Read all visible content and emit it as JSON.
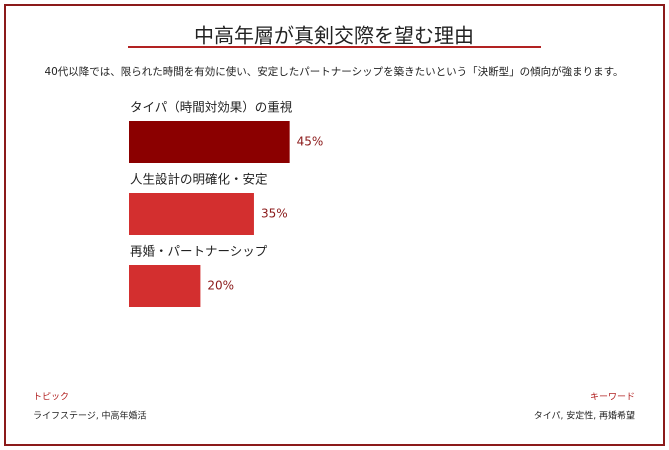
{
  "chart_data": {
    "type": "bar",
    "orientation": "horizontal",
    "title": "中高年層が真剣交際を望む理由",
    "subtitle": "40代以降では、限られた時間を有効に使い、安定したパートナーシップを築きたいという「決断型」の傾向が強まります。",
    "categories": [
      "タイパ（時間対効果）の重視",
      "人生設計の明確化・安定",
      "再婚・パートナーシップ"
    ],
    "values": [
      45,
      35,
      20
    ],
    "value_labels": [
      "45%",
      "35%",
      "20%"
    ],
    "colors": [
      "#8b0000",
      "#d32f2f",
      "#d32f2f"
    ]
  },
  "footer": {
    "topic_label": "トピック",
    "topic": "ライフステージ, 中高年婚活",
    "keyword_label": "キーワード",
    "keywords": "タイパ, 安定性, 再婚希望"
  }
}
